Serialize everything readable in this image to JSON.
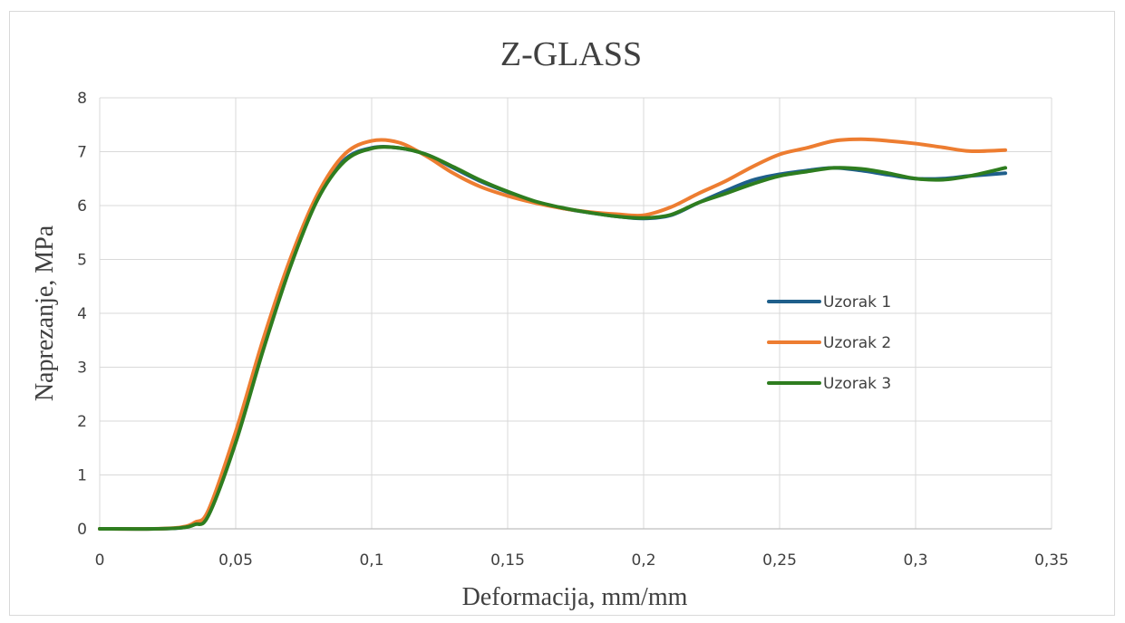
{
  "chart_data": {
    "type": "line",
    "title": "Z-GLASS",
    "xlabel": "Deformacija, mm/mm",
    "ylabel": "Naprezanje, MPa",
    "xlim": [
      0,
      0.35
    ],
    "ylim": [
      0,
      8
    ],
    "x_ticks": [
      0,
      0.05,
      0.1,
      0.15,
      0.2,
      0.25,
      0.3,
      0.35
    ],
    "x_tick_labels": [
      "0",
      "0,05",
      "0,1",
      "0,15",
      "0,2",
      "0,25",
      "0,3",
      "0,35"
    ],
    "y_ticks": [
      0,
      1,
      2,
      3,
      4,
      5,
      6,
      7,
      8
    ],
    "y_tick_labels": [
      "0",
      "1",
      "2",
      "3",
      "4",
      "5",
      "6",
      "7",
      "8"
    ],
    "grid": true,
    "legend_position": "right-center",
    "series": [
      {
        "name": "Uzorak 1",
        "color": "#1f5f8b",
        "points": [
          [
            0,
            0
          ],
          [
            0.02,
            0
          ],
          [
            0.03,
            0.02
          ],
          [
            0.035,
            0.1
          ],
          [
            0.04,
            0.3
          ],
          [
            0.05,
            1.75
          ],
          [
            0.06,
            3.45
          ],
          [
            0.07,
            4.95
          ],
          [
            0.08,
            6.15
          ],
          [
            0.09,
            6.85
          ],
          [
            0.1,
            7.07
          ],
          [
            0.11,
            7.07
          ],
          [
            0.12,
            6.95
          ],
          [
            0.13,
            6.7
          ],
          [
            0.14,
            6.45
          ],
          [
            0.15,
            6.25
          ],
          [
            0.16,
            6.07
          ],
          [
            0.17,
            5.95
          ],
          [
            0.18,
            5.87
          ],
          [
            0.19,
            5.8
          ],
          [
            0.2,
            5.76
          ],
          [
            0.21,
            5.82
          ],
          [
            0.22,
            6.05
          ],
          [
            0.23,
            6.27
          ],
          [
            0.24,
            6.47
          ],
          [
            0.25,
            6.58
          ],
          [
            0.26,
            6.65
          ],
          [
            0.27,
            6.7
          ],
          [
            0.28,
            6.65
          ],
          [
            0.29,
            6.57
          ],
          [
            0.3,
            6.5
          ],
          [
            0.31,
            6.5
          ],
          [
            0.32,
            6.55
          ],
          [
            0.333,
            6.6
          ]
        ]
      },
      {
        "name": "Uzorak 2",
        "color": "#ed7d31",
        "points": [
          [
            0,
            0
          ],
          [
            0.02,
            0
          ],
          [
            0.03,
            0.03
          ],
          [
            0.035,
            0.12
          ],
          [
            0.04,
            0.35
          ],
          [
            0.05,
            1.8
          ],
          [
            0.06,
            3.5
          ],
          [
            0.07,
            5.0
          ],
          [
            0.08,
            6.2
          ],
          [
            0.09,
            6.95
          ],
          [
            0.1,
            7.2
          ],
          [
            0.11,
            7.17
          ],
          [
            0.12,
            6.92
          ],
          [
            0.13,
            6.6
          ],
          [
            0.14,
            6.35
          ],
          [
            0.15,
            6.18
          ],
          [
            0.16,
            6.05
          ],
          [
            0.17,
            5.95
          ],
          [
            0.18,
            5.88
          ],
          [
            0.19,
            5.84
          ],
          [
            0.2,
            5.82
          ],
          [
            0.21,
            5.97
          ],
          [
            0.22,
            6.22
          ],
          [
            0.23,
            6.45
          ],
          [
            0.24,
            6.72
          ],
          [
            0.25,
            6.95
          ],
          [
            0.26,
            7.07
          ],
          [
            0.27,
            7.2
          ],
          [
            0.28,
            7.23
          ],
          [
            0.29,
            7.2
          ],
          [
            0.3,
            7.15
          ],
          [
            0.31,
            7.08
          ],
          [
            0.32,
            7.01
          ],
          [
            0.333,
            7.03
          ]
        ]
      },
      {
        "name": "Uzorak 3",
        "color": "#2e7d1f",
        "points": [
          [
            0,
            0
          ],
          [
            0.02,
            0
          ],
          [
            0.03,
            0.02
          ],
          [
            0.035,
            0.08
          ],
          [
            0.04,
            0.25
          ],
          [
            0.05,
            1.6
          ],
          [
            0.06,
            3.3
          ],
          [
            0.07,
            4.85
          ],
          [
            0.08,
            6.1
          ],
          [
            0.09,
            6.82
          ],
          [
            0.1,
            7.06
          ],
          [
            0.11,
            7.07
          ],
          [
            0.12,
            6.95
          ],
          [
            0.13,
            6.72
          ],
          [
            0.14,
            6.47
          ],
          [
            0.15,
            6.26
          ],
          [
            0.16,
            6.08
          ],
          [
            0.17,
            5.96
          ],
          [
            0.18,
            5.87
          ],
          [
            0.19,
            5.8
          ],
          [
            0.2,
            5.77
          ],
          [
            0.21,
            5.83
          ],
          [
            0.22,
            6.05
          ],
          [
            0.23,
            6.22
          ],
          [
            0.24,
            6.4
          ],
          [
            0.25,
            6.55
          ],
          [
            0.26,
            6.63
          ],
          [
            0.27,
            6.7
          ],
          [
            0.28,
            6.68
          ],
          [
            0.29,
            6.6
          ],
          [
            0.3,
            6.5
          ],
          [
            0.31,
            6.48
          ],
          [
            0.32,
            6.55
          ],
          [
            0.333,
            6.7
          ]
        ]
      }
    ]
  }
}
